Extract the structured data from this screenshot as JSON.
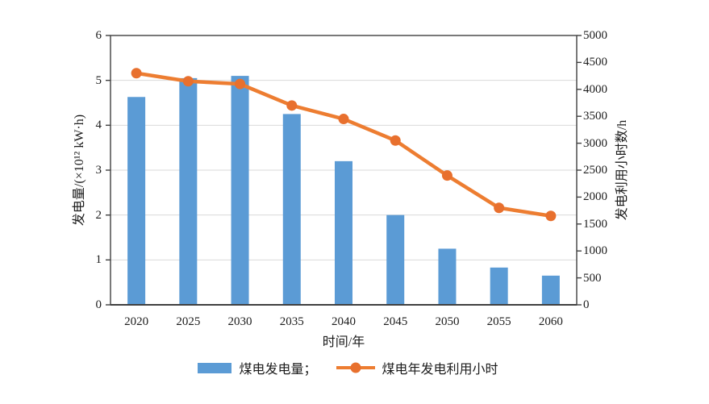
{
  "chart_data": {
    "type": "bar",
    "subtype": "bar+line dual axis",
    "categories": [
      "2020",
      "2025",
      "2030",
      "2035",
      "2040",
      "2045",
      "2050",
      "2055",
      "2060"
    ],
    "series": [
      {
        "name": "煤电发电量",
        "type": "bar",
        "axis": "left",
        "color": "#5b9bd5",
        "values": [
          4.63,
          5.05,
          5.1,
          4.25,
          3.2,
          2.0,
          1.25,
          0.83,
          0.65
        ]
      },
      {
        "name": "煤电年发电利用小时",
        "type": "line",
        "axis": "right",
        "color": "#ed7d31",
        "marker_color": "#e8702e",
        "values": [
          4300,
          4150,
          4100,
          3700,
          3450,
          3050,
          2400,
          1800,
          1650
        ]
      }
    ],
    "title": "",
    "xlabel": "时间/年",
    "ylabel_left": "发电量/(×10¹² kW·h)",
    "ylabel_right": "发电利用小时数/h",
    "ylim_left": [
      0,
      6
    ],
    "yticks_left": [
      0,
      1,
      2,
      3,
      4,
      5,
      6
    ],
    "ylim_right": [
      0,
      5000
    ],
    "yticks_right": [
      0,
      500,
      1000,
      1500,
      2000,
      2500,
      3000,
      3500,
      4000,
      4500,
      5000
    ],
    "grid": "horizontal gridlines at left-axis integers 1-5",
    "gridline_color": "#d9d9d9",
    "axis_color": "#404040",
    "legend_position": "bottom-center",
    "legend": [
      {
        "label": "煤电发电量；",
        "swatch": "blue-bar"
      },
      {
        "label": "煤电年发电利用小时",
        "swatch": "orange-line-dot"
      }
    ]
  }
}
